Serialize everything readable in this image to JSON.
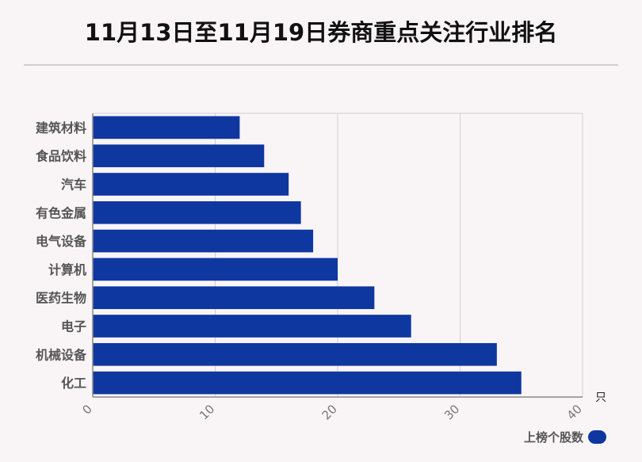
{
  "title": "11月13日至11月19日券商重点关注行业排名",
  "colors": {
    "bar": "#0f37a0",
    "grid": "#cfcfcf",
    "axis": "#888888"
  },
  "chart_data": {
    "type": "bar",
    "orientation": "horizontal",
    "categories": [
      "建筑材料",
      "食品饮料",
      "汽车",
      "有色金属",
      "电气设备",
      "计算机",
      "医药生物",
      "电子",
      "机械设备",
      "化工"
    ],
    "series": [
      {
        "name": "上榜个股数",
        "values": [
          12,
          14,
          16,
          17,
          18,
          20,
          23,
          26,
          33,
          35
        ]
      }
    ],
    "xlim": [
      0,
      40
    ],
    "xticks": [
      "0",
      "10",
      "20",
      "30",
      "40"
    ],
    "unit_label": "只",
    "grid": true,
    "legend_position": "bottom-right"
  }
}
